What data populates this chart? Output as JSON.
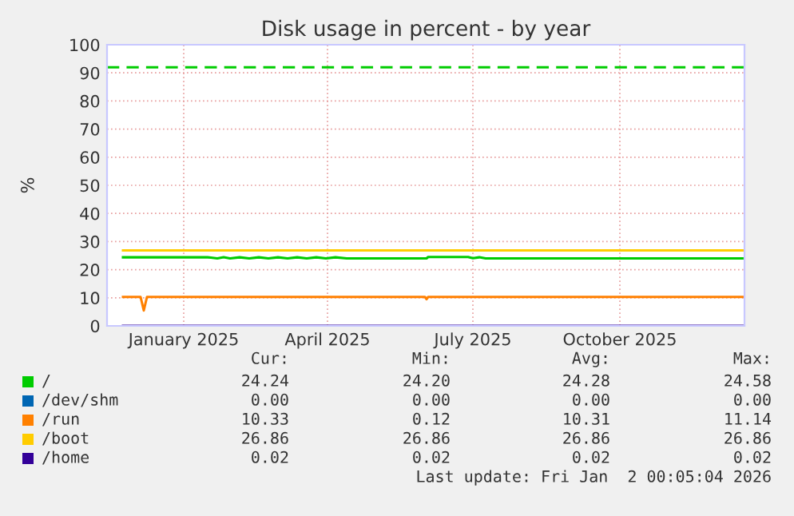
{
  "chart_data": {
    "type": "line",
    "title": "Disk usage in percent - by year",
    "ylabel": "%",
    "xlim": [
      "2024-11-29",
      "2026-01-02"
    ],
    "xticks": [
      {
        "value": "2025-01-16",
        "label": "January 2025"
      },
      {
        "value": "2025-04-16",
        "label": "April 2025"
      },
      {
        "value": "2025-07-16",
        "label": "July 2025"
      },
      {
        "value": "2025-10-16",
        "label": "October 2025"
      }
    ],
    "ylim": [
      0,
      100
    ],
    "yticks": [
      0,
      10,
      20,
      30,
      40,
      50,
      60,
      70,
      80,
      90,
      100
    ],
    "grid": true,
    "legend": "bottom",
    "marker": "none",
    "line_style": "solid",
    "series": [
      {
        "name": "/",
        "color": "#00cc00",
        "x": [
          "2024-12-09",
          "2025-01-31",
          "2025-02-02",
          "2025-02-06",
          "2025-02-10",
          "2025-02-14",
          "2025-02-20",
          "2025-02-26",
          "2025-03-04",
          "2025-03-10",
          "2025-03-16",
          "2025-03-22",
          "2025-03-28",
          "2025-04-03",
          "2025-04-09",
          "2025-04-15",
          "2025-04-21",
          "2025-04-28",
          "2025-06-17",
          "2025-06-18",
          "2025-07-13",
          "2025-07-16",
          "2025-07-20",
          "2025-07-24",
          "2025-07-28",
          "2026-01-02"
        ],
        "values": [
          24.4,
          24.4,
          24.3,
          24.0,
          24.4,
          24.0,
          24.4,
          24.0,
          24.4,
          24.0,
          24.4,
          24.0,
          24.4,
          24.0,
          24.4,
          24.0,
          24.4,
          24.0,
          24.0,
          24.5,
          24.5,
          24.1,
          24.4,
          24.0,
          24.0,
          24.0
        ]
      },
      {
        "name": "/dev/shm",
        "color": "#0066b3"
      },
      {
        "name": "/run",
        "color": "#ff8000",
        "x": [
          "2024-12-09",
          "2024-12-20",
          "2024-12-22",
          "2024-12-24",
          "2025-06-16",
          "2025-06-17",
          "2025-06-18",
          "2026-01-02"
        ],
        "values": [
          10.3,
          10.3,
          5.5,
          10.3,
          10.3,
          9.5,
          10.3,
          10.3
        ]
      },
      {
        "name": "/boot",
        "color": "#ffcc00",
        "x": [
          "2024-12-09",
          "2026-01-02"
        ],
        "values": [
          26.86,
          26.86
        ]
      },
      {
        "name": "/home",
        "color": "#330099",
        "x": [
          "2024-12-09",
          "2026-01-02"
        ],
        "values": [
          0.02,
          0.02
        ]
      }
    ],
    "ref_lines": [
      {
        "axis": "y",
        "value": 92,
        "color": "#00cc00",
        "line_style": "dashed"
      }
    ],
    "annotations": [
      "Cur: Min: Avg: Max:",
      "24.24 24.20 24.28 24.58",
      "0.00 0.00 0.00 0.00",
      "10.33 0.12 10.31 11.14",
      "26.86 26.86 26.86 26.86",
      "0.02 0.02 0.02 0.02",
      "Last update: Fri Jan  2 00:05:04 2026"
    ]
  }
}
